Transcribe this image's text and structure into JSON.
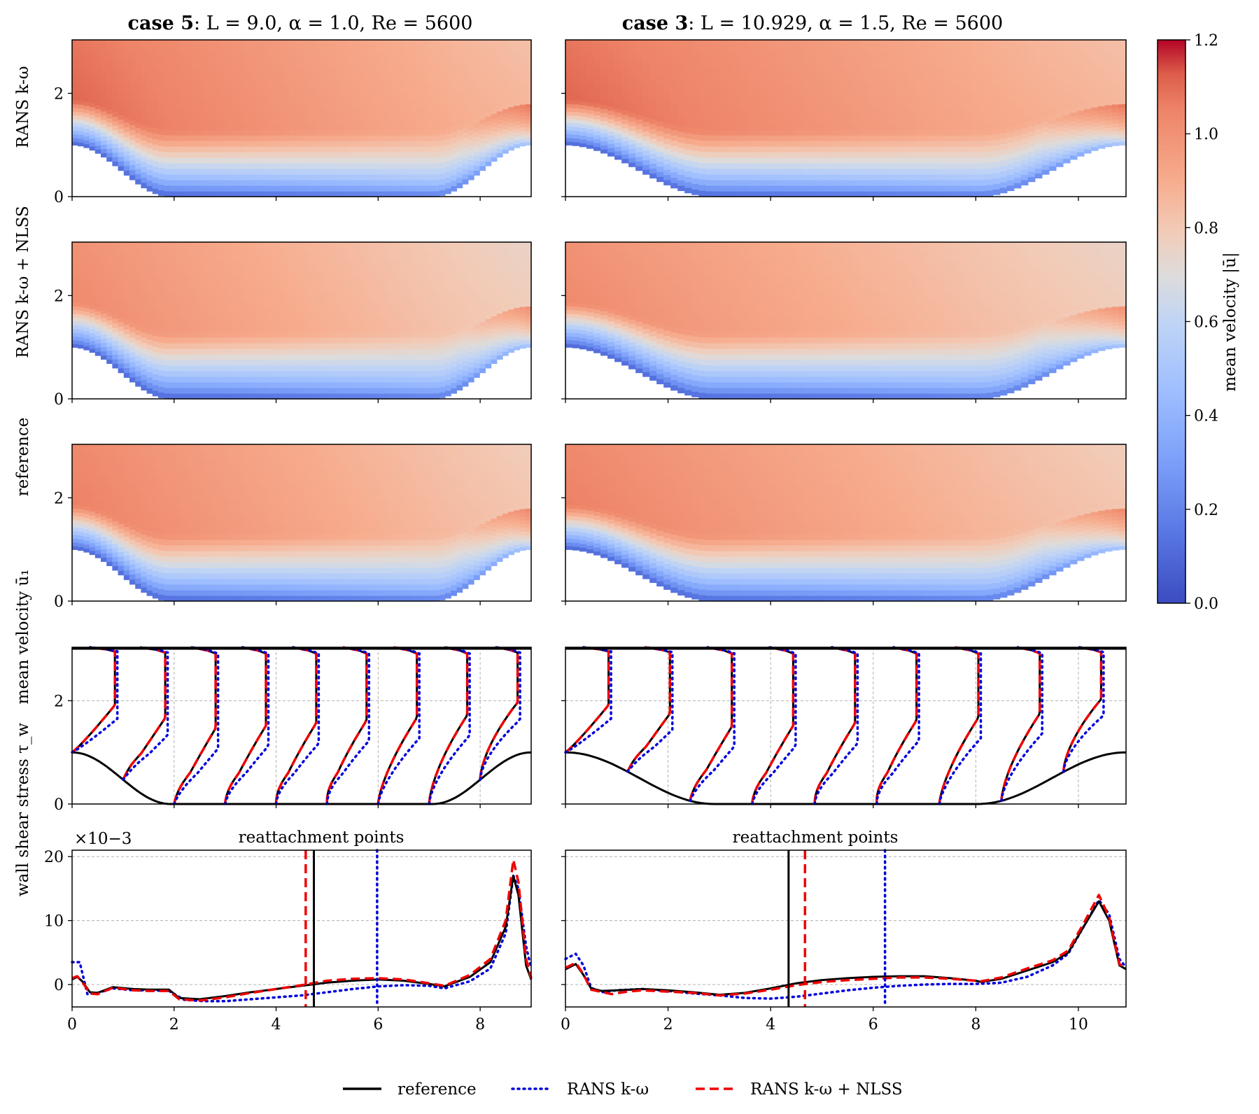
{
  "chart_data": {
    "type": "multi-panel figure (heatmaps + line plots)",
    "columns": [
      {
        "id": "case5",
        "title_bold": "case 5",
        "title_rest": ": L = 9.0, α = 1.0, Re = 5600",
        "L": 9.0,
        "alpha": 1.0,
        "Re": 5600,
        "xlim": [
          0,
          9
        ],
        "xticks": [
          0,
          2,
          4,
          6,
          8
        ]
      },
      {
        "id": "case3",
        "title_bold": "case 3",
        "title_rest": ": L = 10.929, α = 1.5, Re = 5600",
        "L": 10.929,
        "alpha": 1.5,
        "Re": 5600,
        "xlim": [
          0,
          10.929
        ],
        "xticks": [
          0,
          2,
          4,
          6,
          8,
          10
        ]
      }
    ],
    "heatmap_rows": [
      {
        "id": "rans",
        "ylabel": "RANS k-ω",
        "peak": 1.13
      },
      {
        "id": "nlss",
        "ylabel": "RANS k-ω + NLSS",
        "peak": 1.05
      },
      {
        "id": "ref",
        "ylabel": "reference",
        "peak": 1.08
      }
    ],
    "heatmap_ylim": [
      0,
      3.035
    ],
    "heatmap_yticks": [
      0,
      2
    ],
    "colorbar": {
      "label": "mean velocity |ū|",
      "range": [
        0.0,
        1.2
      ],
      "ticks": [
        "0.0",
        "0.2",
        "0.4",
        "0.6",
        "0.8",
        "1.0",
        "1.2"
      ],
      "colormap": "coolwarm",
      "low_color": "#3b4cc0",
      "mid_color": "#dddddd",
      "high_color": "#b40426"
    },
    "velocity_profiles": {
      "ylabel": "mean velocity ū₁",
      "ylim": [
        0,
        3.035
      ],
      "yticks": [
        0,
        2
      ],
      "case5_stations": [
        0,
        1,
        2,
        3,
        4,
        5,
        6,
        7,
        8
      ],
      "case3_stations": [
        0,
        1.21,
        2.43,
        3.64,
        4.86,
        6.07,
        7.29,
        8.5,
        9.71
      ]
    },
    "wall_shear_stress": {
      "ylabel": "wall shear stress τ_w",
      "multiplier": "×10−3",
      "ylim": [
        -3.5,
        21
      ],
      "yticks": [
        0,
        10,
        20
      ],
      "annotation": "reattachment points",
      "case5": {
        "reattachment": {
          "reference": 4.74,
          "rans_kw": 5.98,
          "rans_kw_nlss": 4.58
        },
        "reference": [
          [
            0,
            0.8
          ],
          [
            0.1,
            1.2
          ],
          [
            0.2,
            0.5
          ],
          [
            0.35,
            -1.2
          ],
          [
            0.5,
            -1.3
          ],
          [
            0.8,
            -0.4
          ],
          [
            1.2,
            -0.7
          ],
          [
            1.5,
            -0.8
          ],
          [
            1.9,
            -0.8
          ],
          [
            2.1,
            -2.1
          ],
          [
            2.5,
            -2.3
          ],
          [
            3,
            -1.8
          ],
          [
            3.5,
            -1.2
          ],
          [
            4,
            -0.7
          ],
          [
            4.5,
            -0.2
          ],
          [
            5,
            0.3
          ],
          [
            5.5,
            0.6
          ],
          [
            6,
            0.8
          ],
          [
            6.5,
            0.6
          ],
          [
            7,
            0.1
          ],
          [
            7.3,
            -0.3
          ],
          [
            7.8,
            1.2
          ],
          [
            8.2,
            3.5
          ],
          [
            8.5,
            9
          ],
          [
            8.65,
            17
          ],
          [
            8.75,
            14
          ],
          [
            8.9,
            3
          ],
          [
            9,
            0.8
          ]
        ],
        "rans_kw": [
          [
            0,
            3.5
          ],
          [
            0.15,
            3.5
          ],
          [
            0.3,
            -1.5
          ],
          [
            0.5,
            -1.3
          ],
          [
            0.8,
            -0.6
          ],
          [
            1.2,
            -0.9
          ],
          [
            1.5,
            -0.9
          ],
          [
            1.9,
            -1.0
          ],
          [
            2.2,
            -2.4
          ],
          [
            2.6,
            -2.6
          ],
          [
            3,
            -2.6
          ],
          [
            3.5,
            -2.3
          ],
          [
            4,
            -2.0
          ],
          [
            4.5,
            -1.7
          ],
          [
            5,
            -1.2
          ],
          [
            5.5,
            -0.7
          ],
          [
            6,
            -0.3
          ],
          [
            6.5,
            -0.1
          ],
          [
            7,
            -0.2
          ],
          [
            7.3,
            -0.6
          ],
          [
            7.8,
            0.5
          ],
          [
            8.2,
            2.5
          ],
          [
            8.5,
            8
          ],
          [
            8.65,
            17
          ],
          [
            8.75,
            15
          ],
          [
            8.9,
            6
          ],
          [
            9,
            2.5
          ]
        ],
        "rans_kw_nlss": [
          [
            0,
            1.0
          ],
          [
            0.1,
            1.3
          ],
          [
            0.2,
            0.4
          ],
          [
            0.35,
            -1.4
          ],
          [
            0.5,
            -1.5
          ],
          [
            0.8,
            -0.5
          ],
          [
            1.2,
            -0.9
          ],
          [
            1.5,
            -1.0
          ],
          [
            1.9,
            -1.0
          ],
          [
            2.1,
            -2.3
          ],
          [
            2.5,
            -2.5
          ],
          [
            3,
            -2.0
          ],
          [
            3.5,
            -1.3
          ],
          [
            4,
            -0.7
          ],
          [
            4.5,
            -0.1
          ],
          [
            5,
            0.6
          ],
          [
            5.5,
            0.9
          ],
          [
            6,
            1.0
          ],
          [
            6.5,
            0.8
          ],
          [
            7,
            0.2
          ],
          [
            7.3,
            -0.2
          ],
          [
            7.8,
            1.5
          ],
          [
            8.2,
            4
          ],
          [
            8.5,
            10
          ],
          [
            8.65,
            19.5
          ],
          [
            8.75,
            16
          ],
          [
            8.9,
            4
          ],
          [
            9,
            1.0
          ]
        ]
      },
      "case3": {
        "reattachment": {
          "reference": 4.35,
          "rans_kw": 6.23,
          "rans_kw_nlss": 4.67
        },
        "reference": [
          [
            0,
            2.4
          ],
          [
            0.2,
            3.2
          ],
          [
            0.35,
            1.5
          ],
          [
            0.5,
            -0.6
          ],
          [
            0.7,
            -1.0
          ],
          [
            1,
            -0.9
          ],
          [
            1.5,
            -0.7
          ],
          [
            2,
            -0.9
          ],
          [
            2.5,
            -1.2
          ],
          [
            3,
            -1.6
          ],
          [
            3.5,
            -1.3
          ],
          [
            4,
            -0.6
          ],
          [
            4.5,
            0.2
          ],
          [
            5,
            0.7
          ],
          [
            5.5,
            1.0
          ],
          [
            6,
            1.2
          ],
          [
            6.5,
            1.3
          ],
          [
            7,
            1.3
          ],
          [
            7.5,
            1.0
          ],
          [
            8,
            0.6
          ],
          [
            8.1,
            0.4
          ],
          [
            8.5,
            0.9
          ],
          [
            9,
            2.2
          ],
          [
            9.5,
            3.5
          ],
          [
            9.8,
            5
          ],
          [
            10.1,
            9
          ],
          [
            10.4,
            13
          ],
          [
            10.6,
            10
          ],
          [
            10.8,
            3
          ],
          [
            10.929,
            2.4
          ]
        ],
        "rans_kw": [
          [
            0,
            4
          ],
          [
            0.2,
            4.8
          ],
          [
            0.35,
            3
          ],
          [
            0.5,
            -0.5
          ],
          [
            0.7,
            -1.2
          ],
          [
            1,
            -0.9
          ],
          [
            1.5,
            -0.7
          ],
          [
            2,
            -1.0
          ],
          [
            2.5,
            -1.4
          ],
          [
            3,
            -1.7
          ],
          [
            3.5,
            -2.1
          ],
          [
            4,
            -2.2
          ],
          [
            4.5,
            -1.9
          ],
          [
            5,
            -1.4
          ],
          [
            5.5,
            -0.9
          ],
          [
            6,
            -0.5
          ],
          [
            6.5,
            -0.2
          ],
          [
            7,
            0
          ],
          [
            7.5,
            0.1
          ],
          [
            8,
            0.1
          ],
          [
            8.3,
            0.2
          ],
          [
            8.5,
            0.3
          ],
          [
            9,
            1.2
          ],
          [
            9.5,
            3
          ],
          [
            9.8,
            4.8
          ],
          [
            10.1,
            9
          ],
          [
            10.4,
            13.2
          ],
          [
            10.6,
            11
          ],
          [
            10.8,
            4
          ],
          [
            10.929,
            2.7
          ]
        ],
        "rans_kw_nlss": [
          [
            0,
            2.6
          ],
          [
            0.2,
            3.4
          ],
          [
            0.35,
            1.6
          ],
          [
            0.5,
            -0.8
          ],
          [
            0.9,
            -1.5
          ],
          [
            1.2,
            -1.1
          ],
          [
            1.5,
            -0.9
          ],
          [
            2,
            -1.1
          ],
          [
            2.5,
            -1.3
          ],
          [
            3,
            -1.7
          ],
          [
            3.5,
            -1.4
          ],
          [
            4,
            -0.8
          ],
          [
            4.5,
            -0.1
          ],
          [
            5,
            0.4
          ],
          [
            5.5,
            0.7
          ],
          [
            6,
            0.9
          ],
          [
            6.5,
            1.1
          ],
          [
            7,
            1.1
          ],
          [
            7.5,
            0.9
          ],
          [
            8,
            0.6
          ],
          [
            8.1,
            0.5
          ],
          [
            8.5,
            1.1
          ],
          [
            9,
            2.5
          ],
          [
            9.5,
            3.8
          ],
          [
            9.8,
            5.3
          ],
          [
            10.1,
            9.5
          ],
          [
            10.4,
            14
          ],
          [
            10.6,
            10.5
          ],
          [
            10.8,
            3.2
          ],
          [
            10.929,
            2.5
          ]
        ]
      }
    },
    "legend": {
      "position": "bottom-center",
      "entries": [
        {
          "label": "reference",
          "color": "#000000",
          "style": "solid"
        },
        {
          "label": "RANS k-ω",
          "color": "#0000dd",
          "style": "dotted"
        },
        {
          "label": "RANS k-ω + NLSS",
          "color": "#ee0000",
          "style": "dashed"
        }
      ]
    }
  }
}
